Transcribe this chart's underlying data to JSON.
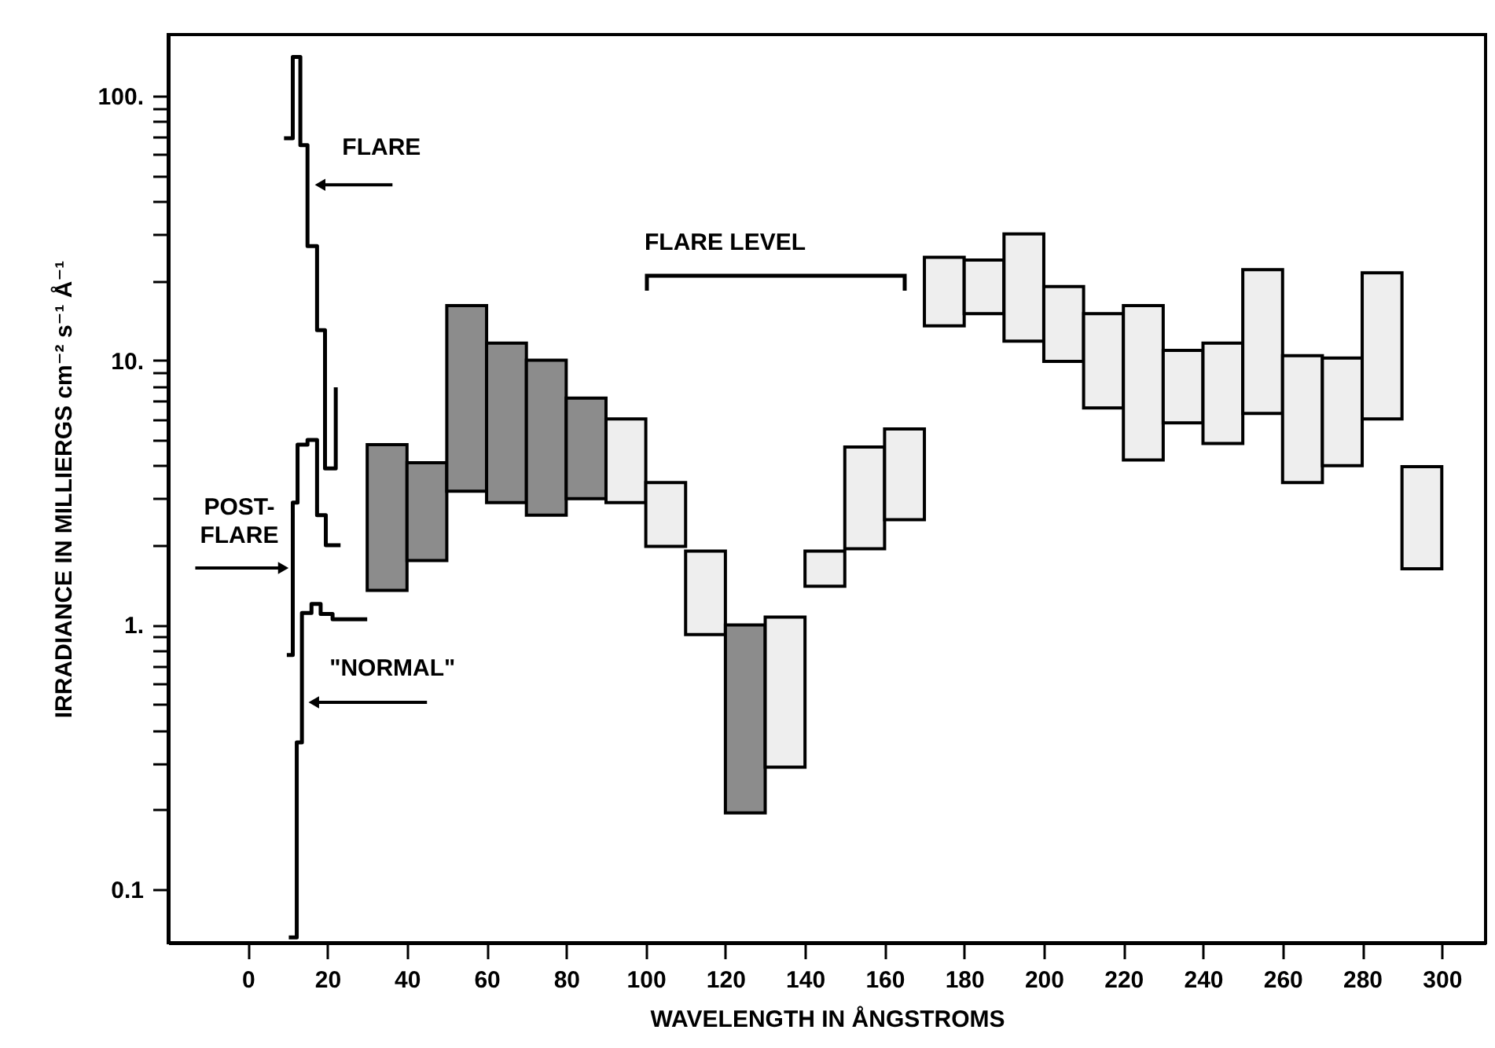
{
  "chart_data": {
    "type": "bar",
    "xlabel": "WAVELENGTH IN ÅNGSTROMS",
    "ylabel": "IRRADIANCE IN MILLIERGS cm⁻² s⁻¹ Å⁻¹",
    "log": "y",
    "xlim": [
      -20,
      311
    ],
    "ylim": [
      0.063,
      170
    ],
    "xticks": [
      0,
      20,
      40,
      60,
      80,
      100,
      120,
      140,
      160,
      180,
      200,
      220,
      240,
      260,
      280,
      300
    ],
    "yticks": [
      {
        "value": 0.1,
        "label": "0.1"
      },
      {
        "value": 0.2,
        "label": null
      },
      {
        "value": 0.3,
        "label": null
      },
      {
        "value": 0.4,
        "label": null
      },
      {
        "value": 0.5,
        "label": null
      },
      {
        "value": 0.6,
        "label": null
      },
      {
        "value": 0.7,
        "label": null
      },
      {
        "value": 0.8,
        "label": null
      },
      {
        "value": 0.9,
        "label": null
      },
      {
        "value": 1,
        "label": "1."
      },
      {
        "value": 2,
        "label": null
      },
      {
        "value": 3,
        "label": null
      },
      {
        "value": 4,
        "label": null
      },
      {
        "value": 5,
        "label": null
      },
      {
        "value": 6,
        "label": null
      },
      {
        "value": 7,
        "label": null
      },
      {
        "value": 8,
        "label": null
      },
      {
        "value": 9,
        "label": null
      },
      {
        "value": 10,
        "label": "10."
      },
      {
        "value": 20,
        "label": null
      },
      {
        "value": 30,
        "label": null
      },
      {
        "value": 40,
        "label": null
      },
      {
        "value": 50,
        "label": null
      },
      {
        "value": 60,
        "label": null
      },
      {
        "value": 70,
        "label": null
      },
      {
        "value": 80,
        "label": null
      },
      {
        "value": 90,
        "label": null
      },
      {
        "value": 100,
        "label": "100."
      }
    ],
    "series": [
      {
        "x": [
          35,
          45,
          55,
          65,
          75,
          85,
          95,
          105,
          115,
          125,
          135,
          145,
          155,
          165,
          175,
          185,
          195,
          205,
          215,
          225,
          235,
          245,
          255,
          265,
          275,
          285,
          295
        ],
        "base": [
          1.35,
          1.75,
          3.2,
          2.9,
          2.6,
          3.0,
          2.9,
          1.98,
          0.92,
          0.195,
          0.29,
          1.4,
          1.94,
          2.5,
          13.5,
          15,
          11.8,
          9.9,
          6.6,
          4.2,
          5.8,
          4.85,
          6.3,
          3.45,
          4.0,
          6.0,
          1.63
        ],
        "values": [
          3.45,
          2.35,
          12.9,
          8.7,
          7.4,
          4.2,
          3.1,
          1.47,
          0.98,
          0.805,
          0.78,
          0.5,
          2.76,
          3.0,
          11,
          8.9,
          18.2,
          9.1,
          8.4,
          11.9,
          5.1,
          6.75,
          15.7,
          6.95,
          6.2,
          15.4,
          2.33
        ],
        "colors": [
          "#8c8c8c",
          "#8c8c8c",
          "#8c8c8c",
          "#8c8c8c",
          "#8c8c8c",
          "#8c8c8c",
          "#eeeeee",
          "#eeeeee",
          "#eeeeee",
          "#8c8c8c",
          "#eeeeee",
          "#eeeeee",
          "#eeeeee",
          "#eeeeee",
          "#eeeeee",
          "#eeeeee",
          "#eeeeee",
          "#eeeeee",
          "#eeeeee",
          "#eeeeee",
          "#eeeeee",
          "#eeeeee",
          "#eeeeee",
          "#eeeeee",
          "#eeeeee",
          "#eeeeee",
          "#eeeeee"
        ]
      },
      {
        "type": "step",
        "color": "#000000",
        "x": [
          9.1,
          11.3,
          13.2,
          15.0,
          17.4,
          19.4,
          22.1
        ],
        "values": [
          69,
          140,
          65,
          27,
          13,
          3.9,
          7.9
        ]
      },
      {
        "type": "step",
        "color": "#000000",
        "x": [
          9.8,
          11.3,
          12.5,
          15.0,
          17.4,
          19.6,
          23.3
        ],
        "values": [
          0.77,
          2.9,
          4.8,
          5.0,
          2.6,
          2.0,
          2.0
        ]
      },
      {
        "type": "step",
        "color": "#000000",
        "x": [
          10.3,
          12.3,
          13.6,
          16,
          18.3,
          21.3,
          30
        ],
        "values": [
          0.066,
          0.36,
          1.11,
          1.2,
          1.1,
          1.05,
          1.05
        ]
      }
    ],
    "annotations": [
      {
        "text": "FLARE",
        "x": 16.6,
        "y": 46
      },
      {
        "text": "POST-\nFLARE",
        "x": 10.5,
        "y": 1.64
      },
      {
        "text": "\"NORMAL\"",
        "x": 15,
        "y": 0.51
      },
      "FLARE LEVEL"
    ]
  }
}
